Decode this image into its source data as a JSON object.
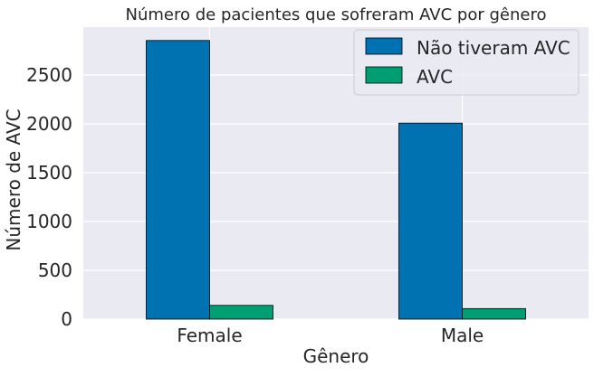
{
  "chart_data": {
    "type": "bar",
    "title": "Número de pacientes que sofreram AVC por gênero",
    "xlabel": "Gênero",
    "ylabel": "Número de AVC",
    "categories": [
      "Female",
      "Male"
    ],
    "series": [
      {
        "name": "Não tiveram AVC",
        "color": "#0072B2",
        "values": [
          2853,
          2007
        ]
      },
      {
        "name": "AVC",
        "color": "#009E73",
        "values": [
          141,
          108
        ]
      }
    ],
    "ylim": [
      0,
      2990
    ],
    "yticks": [
      0,
      500,
      1000,
      1500,
      2000,
      2500
    ],
    "grid": true,
    "legend_position": "top-right",
    "plot_background": "#EAEAF2"
  }
}
